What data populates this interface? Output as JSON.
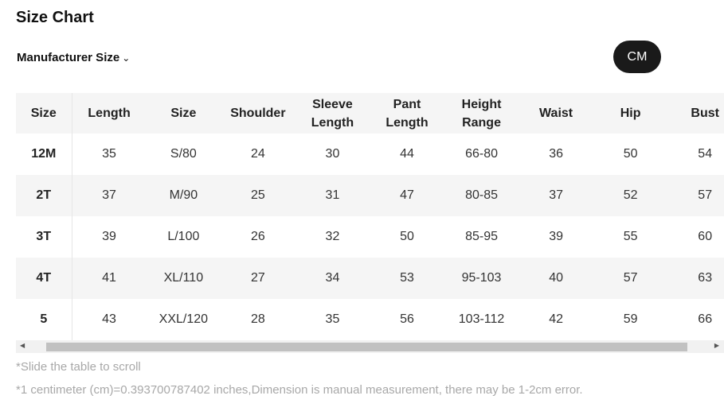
{
  "title": "Size Chart",
  "manufacturer_size": "Manufacturer Size",
  "unit_button": "CM",
  "table": {
    "headers": [
      "Size",
      "Length",
      "Size",
      "Shoulder",
      "Sleeve Length",
      "Pant Length",
      "Height Range",
      "Waist",
      "Hip",
      "Bust"
    ],
    "rows": [
      [
        "12M",
        "35",
        "S/80",
        "24",
        "30",
        "44",
        "66-80",
        "36",
        "50",
        "54"
      ],
      [
        "2T",
        "37",
        "M/90",
        "25",
        "31",
        "47",
        "80-85",
        "37",
        "52",
        "57"
      ],
      [
        "3T",
        "39",
        "L/100",
        "26",
        "32",
        "50",
        "85-95",
        "39",
        "55",
        "60"
      ],
      [
        "4T",
        "41",
        "XL/110",
        "27",
        "34",
        "53",
        "95-103",
        "40",
        "57",
        "63"
      ],
      [
        "5",
        "43",
        "XXL/120",
        "28",
        "35",
        "56",
        "103-112",
        "42",
        "59",
        "66"
      ]
    ]
  },
  "scroll_note": "*Slide the table to scroll",
  "measurement_note": "*1 centimeter (cm)=0.393700787402 inches,Dimension is manual measurement, there may be 1-2cm error."
}
